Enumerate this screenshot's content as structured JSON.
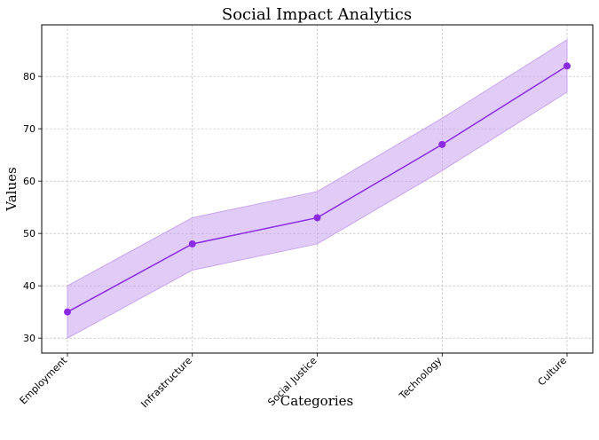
{
  "chart_data": {
    "type": "line",
    "title": "Social Impact Analytics",
    "xlabel": "Categories",
    "ylabel": "Values",
    "categories": [
      "Employment",
      "Infrastructure",
      "Social Justice",
      "Technology",
      "Culture"
    ],
    "series": [
      {
        "values": [
          35,
          48,
          53,
          67,
          82
        ],
        "lower": [
          30,
          43,
          48,
          62,
          77
        ],
        "upper": [
          40,
          53,
          58,
          72,
          87
        ],
        "color": "#8a2be2",
        "band_color": "#c9a3f0"
      }
    ],
    "yticks": [
      30,
      40,
      50,
      60,
      70,
      80
    ],
    "ylim": [
      27.15,
      89.85
    ],
    "grid": true,
    "legend": "none"
  }
}
